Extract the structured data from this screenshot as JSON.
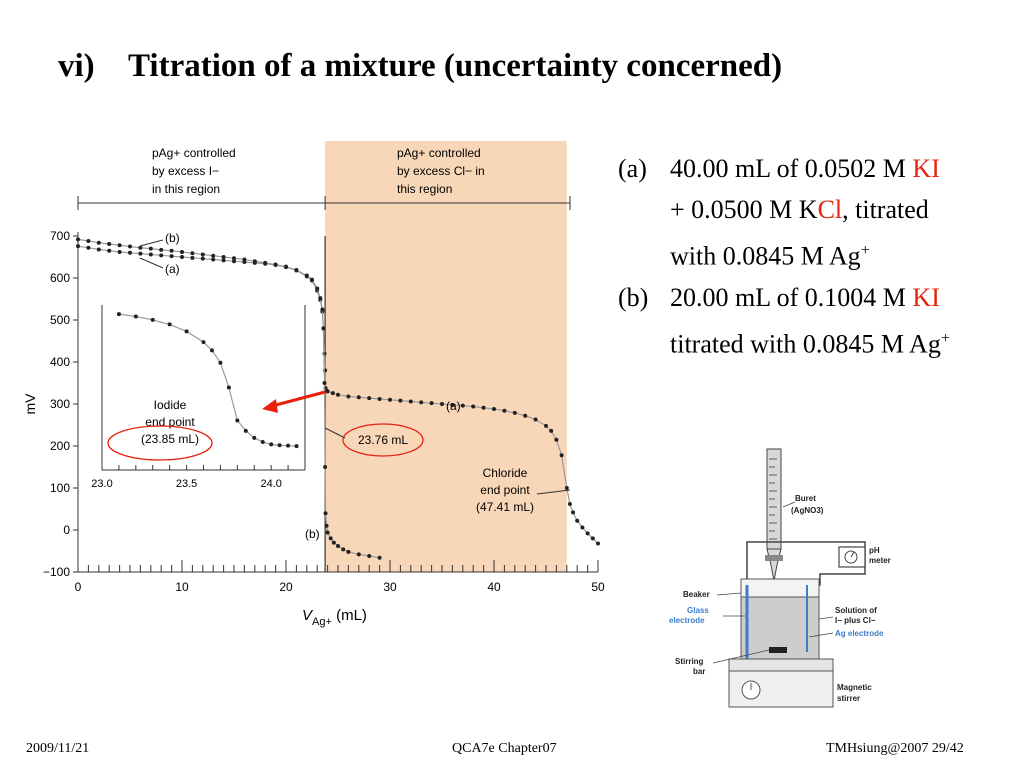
{
  "slide": {
    "title_number": "vi)",
    "title_text": "Titration of a mixture (uncertainty concerned)",
    "footer_left": "2009/11/21",
    "footer_center": "QCA7e Chapter07",
    "footer_right": "TMHsiung@2007 29/42"
  },
  "items": [
    {
      "label": "(a)",
      "parts": [
        "40.00 mL of 0.0502 M ",
        "KI",
        " + 0.0500 M K",
        "Cl",
        ", titrated with 0.0845 M Ag",
        "+"
      ]
    },
    {
      "label": "(b)",
      "parts": [
        "20.00 mL of 0.1004 M ",
        "KI",
        " titrated with 0.0845 M Ag",
        "+"
      ]
    }
  ],
  "colors": {
    "highlight_region": "#f8d6b8",
    "accent_red": "#e8200c",
    "curve_gray": "#9a9a9a",
    "glass_blue": "#3d7cc9"
  },
  "chart_data": {
    "type": "line",
    "xlabel": "V",
    "xlabel_sub": "Ag+",
    "xlabel_unit": "(mL)",
    "ylabel": "mV",
    "xlim": [
      0,
      50
    ],
    "ylim": [
      -100,
      700
    ],
    "xticks": [
      0,
      10,
      20,
      30,
      40,
      50
    ],
    "yticks": [
      -100,
      0,
      100,
      200,
      300,
      400,
      500,
      600,
      700
    ],
    "region_left_label": [
      "pAg+ controlled",
      "by excess I−",
      "in this region"
    ],
    "region_right_label": [
      "pAg+ controlled",
      "by excess Cl− in",
      "this region"
    ],
    "highlight_x": [
      23.76,
      47.0
    ],
    "series": [
      {
        "name": "(a)",
        "x": [
          0,
          1,
          2,
          3,
          4,
          5,
          6,
          7,
          8,
          9,
          10,
          11,
          12,
          13,
          14,
          15,
          16,
          17,
          18,
          19,
          20,
          21,
          22,
          22.5,
          23.0,
          23.3,
          23.5,
          23.6,
          23.7,
          23.76,
          23.8,
          23.9,
          24.0,
          24.5,
          25,
          26,
          27,
          28,
          29,
          30,
          31,
          32,
          33,
          34,
          35,
          36,
          37,
          38,
          39,
          40,
          41,
          42,
          43,
          44,
          45,
          45.5,
          46,
          46.5,
          47.0,
          47.3,
          47.6,
          48,
          48.5,
          49,
          49.5,
          50
        ],
        "y": [
          676,
          672,
          668,
          665,
          662,
          660,
          658,
          656,
          654,
          652,
          650,
          648,
          646,
          644,
          642,
          640,
          638,
          636,
          634,
          631,
          626,
          618,
          604,
          594,
          570,
          548,
          520,
          480,
          420,
          380,
          338,
          332,
          330,
          326,
          322,
          318,
          316,
          314,
          312,
          310,
          308,
          306,
          304,
          302,
          300,
          298,
          296,
          294,
          291,
          288,
          284,
          279,
          272,
          263,
          248,
          236,
          215,
          178,
          100,
          62,
          42,
          22,
          6,
          -8,
          -20,
          -32
        ]
      },
      {
        "name": "(b)",
        "x": [
          0,
          1,
          2,
          3,
          4,
          5,
          6,
          7,
          8,
          9,
          10,
          11,
          12,
          13,
          14,
          15,
          16,
          17,
          18,
          19,
          20,
          21,
          22,
          22.5,
          23.0,
          23.3,
          23.5,
          23.6,
          23.7,
          23.76,
          23.8,
          23.9,
          24.0,
          24.3,
          24.6,
          25,
          25.5,
          26,
          27,
          28,
          29
        ],
        "y": [
          692,
          688,
          684,
          681,
          678,
          675,
          672,
          670,
          667,
          665,
          662,
          659,
          656,
          653,
          650,
          647,
          644,
          640,
          636,
          632,
          627,
          619,
          606,
          596,
          575,
          552,
          525,
          480,
          350,
          150,
          40,
          10,
          -6,
          -20,
          -30,
          -38,
          -46,
          -52,
          -58,
          -62,
          -66
        ]
      }
    ],
    "inset": {
      "xlim": [
        23.0,
        24.2
      ],
      "ylim": [
        150,
        550
      ],
      "xticks": [
        23.0,
        23.5,
        24.0
      ],
      "x": [
        23.1,
        23.2,
        23.3,
        23.4,
        23.5,
        23.6,
        23.65,
        23.7,
        23.75,
        23.8,
        23.85,
        23.9,
        23.95,
        24.0,
        24.05,
        24.1,
        24.15
      ],
      "y": [
        528,
        522,
        514,
        503,
        486,
        460,
        440,
        410,
        350,
        270,
        245,
        228,
        218,
        212,
        210,
        209,
        208
      ]
    },
    "annotations": {
      "iodide_end_point": [
        "Iodide",
        "end point",
        "(23.85 mL)"
      ],
      "marker_label": "23.76 mL",
      "chloride_end_point": [
        "Chloride",
        "end point",
        "(47.41 mL)"
      ]
    }
  },
  "apparatus": {
    "buret": "Buret",
    "buret_sub": "(AgNO3)",
    "ph_meter": "pH",
    "ph_meter_2": "meter",
    "beaker": "Beaker",
    "glass_electrode": "Glass",
    "glass_electrode_2": "electrode",
    "solution": "Solution of",
    "solution_2": "I− plus Cl−",
    "ag_electrode": "Ag electrode",
    "stirring_bar": "Stirring",
    "stirring_bar_2": "bar",
    "magnetic_stirrer": "Magnetic",
    "magnetic_stirrer_2": "stirrer"
  }
}
